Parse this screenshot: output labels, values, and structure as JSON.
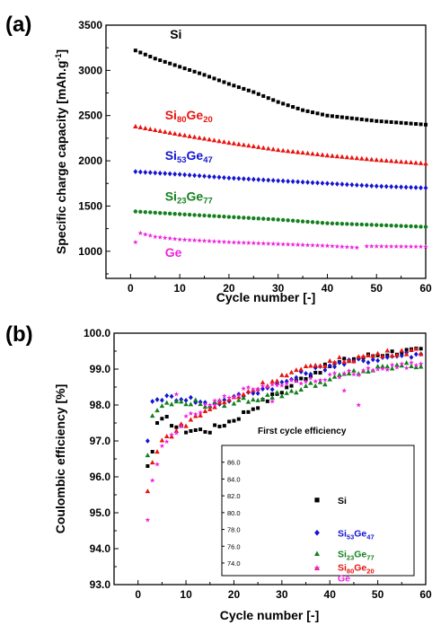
{
  "chart_data": [
    {
      "panel": "(a)",
      "type": "scatter",
      "xlabel": "Cycle number [-]",
      "ylabel": "Specific charge capacity [mAh.g-1]",
      "ylabel_main": "Specific charge capacity [mAh.g",
      "ylabel_sup": "-1",
      "ylabel_end": "]",
      "xlim": [
        -5,
        60
      ],
      "ylim": [
        700,
        3500
      ],
      "xticks": [
        0,
        10,
        20,
        30,
        40,
        50,
        60
      ],
      "yticks": [
        1000,
        1500,
        2000,
        2500,
        3000,
        3500
      ],
      "series": [
        {
          "name": "Si",
          "label_main": "Si",
          "label_sub1": "",
          "label_mid": "",
          "label_sub2": "",
          "color": "#000000",
          "marker": "square",
          "label_at": [
            8,
            3350
          ],
          "anchors": [
            [
              1,
              3220
            ],
            [
              5,
              3130
            ],
            [
              10,
              3040
            ],
            [
              15,
              2950
            ],
            [
              20,
              2850
            ],
            [
              25,
              2760
            ],
            [
              30,
              2650
            ],
            [
              35,
              2560
            ],
            [
              40,
              2500
            ],
            [
              45,
              2470
            ],
            [
              50,
              2440
            ],
            [
              55,
              2420
            ],
            [
              60,
              2400
            ]
          ]
        },
        {
          "name": "Si80Ge20",
          "label_main": "Si",
          "label_sub1": "80",
          "label_mid": "Ge",
          "label_sub2": "20",
          "color": "#e8140f",
          "marker": "triangle",
          "label_at": [
            7,
            2455
          ],
          "anchors": [
            [
              1,
              2380
            ],
            [
              10,
              2290
            ],
            [
              20,
              2200
            ],
            [
              30,
              2120
            ],
            [
              40,
              2060
            ],
            [
              50,
              2010
            ],
            [
              60,
              1970
            ]
          ]
        },
        {
          "name": "Si53Ge47",
          "label_main": "Si",
          "label_sub1": "53",
          "label_mid": "Ge",
          "label_sub2": "47",
          "color": "#1414d2",
          "marker": "diamond",
          "label_at": [
            7,
            2010
          ],
          "anchors": [
            [
              1,
              1880
            ],
            [
              10,
              1850
            ],
            [
              20,
              1810
            ],
            [
              30,
              1780
            ],
            [
              40,
              1750
            ],
            [
              50,
              1720
            ],
            [
              60,
              1700
            ]
          ]
        },
        {
          "name": "Si23Ge77",
          "label_main": "Si",
          "label_sub1": "23",
          "label_mid": "Ge",
          "label_sub2": "77",
          "color": "#13801e",
          "marker": "circle",
          "label_at": [
            7,
            1560
          ],
          "anchors": [
            [
              1,
              1440
            ],
            [
              10,
              1410
            ],
            [
              20,
              1380
            ],
            [
              30,
              1350
            ],
            [
              40,
              1310
            ],
            [
              50,
              1290
            ],
            [
              60,
              1270
            ]
          ]
        },
        {
          "name": "Ge",
          "label_main": "Ge",
          "label_sub1": "",
          "label_mid": "",
          "label_sub2": "",
          "color": "#ee22dd",
          "marker": "star",
          "label_at": [
            7,
            940
          ],
          "first_point": [
            1,
            1100
          ],
          "skip": [
            47
          ],
          "anchors": [
            [
              2,
              1200
            ],
            [
              5,
              1160
            ],
            [
              10,
              1130
            ],
            [
              20,
              1100
            ],
            [
              30,
              1080
            ],
            [
              40,
              1060
            ],
            [
              46,
              1040
            ],
            [
              48,
              1055
            ],
            [
              60,
              1050
            ]
          ]
        }
      ]
    },
    {
      "panel": "(b)",
      "type": "scatter",
      "xlabel": "Cycle number [-]",
      "ylabel": "Coulombic efficiency [%]",
      "xlim": [
        -5,
        60
      ],
      "ylim": [
        93,
        100
      ],
      "xticks": [
        0,
        10,
        20,
        30,
        40,
        50,
        60
      ],
      "yticks": [
        "93.0",
        "94.0",
        "95.0",
        "96.0",
        "97.0",
        "98.0",
        "99.0",
        "100.0"
      ],
      "series": [
        {
          "name": "Si",
          "color": "#000000",
          "marker": "square",
          "anchors": [
            [
              2,
              96.3
            ],
            [
              3,
              96.7
            ],
            [
              4,
              97.5
            ],
            [
              6,
              97.6
            ],
            [
              8,
              97.4
            ],
            [
              10,
              97.3
            ],
            [
              15,
              97.3
            ],
            [
              20,
              97.6
            ],
            [
              25,
              98.0
            ],
            [
              30,
              98.4
            ],
            [
              35,
              98.8
            ],
            [
              40,
              99.1
            ],
            [
              45,
              99.3
            ],
            [
              50,
              99.4
            ],
            [
              55,
              99.5
            ],
            [
              59,
              99.5
            ]
          ]
        },
        {
          "name": "Si53Ge47",
          "color": "#1414d2",
          "marker": "diamond",
          "anchors": [
            [
              2,
              97.0
            ],
            [
              3,
              98.1
            ],
            [
              5,
              98.2
            ],
            [
              10,
              98.2
            ],
            [
              15,
              98.0
            ],
            [
              20,
              98.2
            ],
            [
              25,
              98.4
            ],
            [
              30,
              98.6
            ],
            [
              35,
              98.9
            ],
            [
              40,
              99.1
            ],
            [
              45,
              99.2
            ],
            [
              50,
              99.3
            ],
            [
              55,
              99.4
            ],
            [
              59,
              99.4
            ]
          ]
        },
        {
          "name": "Si23Ge77",
          "color": "#13801e",
          "marker": "triangle",
          "anchors": [
            [
              2,
              96.6
            ],
            [
              3,
              97.7
            ],
            [
              5,
              98.0
            ],
            [
              10,
              98.1
            ],
            [
              15,
              98.0
            ],
            [
              20,
              98.1
            ],
            [
              25,
              98.2
            ],
            [
              30,
              98.3
            ],
            [
              35,
              98.5
            ],
            [
              40,
              98.7
            ],
            [
              45,
              98.9
            ],
            [
              50,
              99.0
            ],
            [
              55,
              99.1
            ],
            [
              59,
              99.1
            ]
          ]
        },
        {
          "name": "Si80Ge20",
          "color": "#e8140f",
          "marker": "triangle",
          "anchors": [
            [
              2,
              95.6
            ],
            [
              3,
              96.4
            ],
            [
              5,
              97.0
            ],
            [
              10,
              97.5
            ],
            [
              15,
              97.9
            ],
            [
              20,
              98.2
            ],
            [
              25,
              98.5
            ],
            [
              30,
              98.8
            ],
            [
              35,
              99.0
            ],
            [
              40,
              99.2
            ],
            [
              45,
              99.3
            ],
            [
              50,
              99.4
            ],
            [
              55,
              99.5
            ],
            [
              59,
              99.5
            ]
          ]
        },
        {
          "name": "Ge",
          "color": "#ee22dd",
          "marker": "star",
          "anchors": [
            [
              2,
              94.8
            ],
            [
              3,
              95.9
            ],
            [
              5,
              96.8
            ],
            [
              8,
              97.3
            ],
            [
              10,
              97.6
            ],
            [
              15,
              98.0
            ],
            [
              20,
              98.3
            ],
            [
              25,
              98.5
            ],
            [
              30,
              98.6
            ],
            [
              35,
              98.7
            ],
            [
              40,
              98.8
            ],
            [
              45,
              98.9
            ],
            [
              50,
              99.0
            ],
            [
              55,
              99.1
            ],
            [
              59,
              99.1
            ]
          ],
          "outliers": [
            [
              8,
              98.3
            ],
            [
              16,
              98.0
            ],
            [
              28,
              98.1
            ],
            [
              43,
              98.4
            ],
            [
              46,
              98.0
            ]
          ]
        }
      ],
      "inset": {
        "title": "First cycle efficiency",
        "ylim": [
          72.5,
          88.0
        ],
        "yticks": [
          "74.0",
          "76.0",
          "78.0",
          "80.0",
          "82.0",
          "84.0",
          "86.0"
        ],
        "entries": [
          {
            "name": "Si",
            "label_main": "Si",
            "label_sub1": "",
            "label_mid": "",
            "label_sub2": "",
            "color": "#000000",
            "marker": "square",
            "value": 81.5
          },
          {
            "name": "Si53Ge47",
            "label_main": "Si",
            "label_sub1": "53",
            "label_mid": "Ge",
            "label_sub2": "47",
            "color": "#1414d2",
            "marker": "diamond",
            "value": 77.6
          },
          {
            "name": "Si23Ge77",
            "label_main": "Si",
            "label_sub1": "23",
            "label_mid": "Ge",
            "label_sub2": "77",
            "color": "#13801e",
            "marker": "triangle",
            "value": 75.1
          },
          {
            "name": "Si80Ge20",
            "label_main": "Si",
            "label_sub1": "80",
            "label_mid": "Ge",
            "label_sub2": "20",
            "color": "#e8140f",
            "marker": "triangle",
            "value": 73.4
          },
          {
            "name": "Ge",
            "label_main": "Ge",
            "label_sub1": "",
            "label_mid": "",
            "label_sub2": "",
            "color": "#ee22dd",
            "marker": "star",
            "value": 73.4
          }
        ]
      }
    }
  ]
}
